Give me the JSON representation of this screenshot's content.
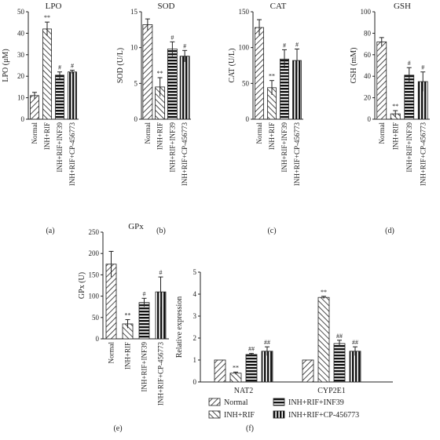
{
  "chart_data": [
    {
      "panel": "(a)",
      "type": "bar",
      "title": "LPO",
      "ylabel": "LPO (μM)",
      "ylim": [
        0,
        50
      ],
      "yticks": [
        0,
        10,
        20,
        30,
        40,
        50
      ],
      "categories": [
        "Normal",
        "INH+RIF",
        "INH+RIF+INF39",
        "INH+RIF+CP-456773"
      ],
      "values": [
        11,
        42,
        20.5,
        22
      ],
      "errors": [
        1.5,
        3.2,
        1.5,
        0.8
      ],
      "annotations": [
        "",
        "**",
        "#",
        "#"
      ]
    },
    {
      "panel": "(b)",
      "type": "bar",
      "title": "SOD",
      "ylabel": "SOD (U/L)",
      "ylim": [
        0,
        15
      ],
      "yticks": [
        0,
        5,
        10,
        15
      ],
      "categories": [
        "Normal",
        "INH+RIF",
        "INH+RIF+INF39",
        "INH+RIF+CP-456773"
      ],
      "values": [
        13.2,
        4.5,
        9.8,
        8.8
      ],
      "errors": [
        0.8,
        1.3,
        1.0,
        0.8
      ],
      "annotations": [
        "",
        "**",
        "#",
        "#"
      ]
    },
    {
      "panel": "(c)",
      "type": "bar",
      "title": "CAT",
      "ylabel": "CAT (U/L)",
      "ylim": [
        0,
        150
      ],
      "yticks": [
        0,
        50,
        100,
        150
      ],
      "categories": [
        "Normal",
        "INH+RIF",
        "INH+RIF+INF39",
        "INH+RIF+CP-456773"
      ],
      "values": [
        128,
        44,
        84,
        82
      ],
      "errors": [
        11,
        10,
        13,
        16
      ],
      "annotations": [
        "",
        "**",
        "#",
        "#"
      ]
    },
    {
      "panel": "(d)",
      "type": "bar",
      "title": "GSH",
      "ylabel": "GSH (mM)",
      "ylim": [
        0,
        100
      ],
      "yticks": [
        0,
        20,
        40,
        60,
        80,
        100
      ],
      "categories": [
        "Normal",
        "INH+RIF",
        "INH+RIF+INF39",
        "INH+RIF+CP-456773"
      ],
      "values": [
        72,
        5,
        41,
        35
      ],
      "errors": [
        4,
        3,
        7,
        9
      ],
      "annotations": [
        "",
        "**",
        "#",
        "#"
      ]
    },
    {
      "panel": "(e)",
      "type": "bar",
      "title": "GPx",
      "ylabel": "GPx (U)",
      "ylim": [
        0,
        250
      ],
      "yticks": [
        0,
        50,
        100,
        150,
        200,
        250
      ],
      "categories": [
        "Normal",
        "INH+RIF",
        "INH+RIF+INF39",
        "INH+RIF+CP-456773"
      ],
      "values": [
        175,
        35,
        85,
        110
      ],
      "errors": [
        30,
        10,
        10,
        35
      ],
      "annotations": [
        "",
        "**",
        "#",
        "#"
      ]
    },
    {
      "panel": "(f)",
      "type": "bar",
      "title": "",
      "ylabel": "Relative expression",
      "ylim": [
        0,
        5
      ],
      "yticks": [
        0,
        1,
        2,
        3,
        4,
        5
      ],
      "categories": [
        "NAT2",
        "CYP2E1"
      ],
      "series": [
        {
          "name": "Normal",
          "values": [
            1.0,
            1.0
          ],
          "errors": [
            0,
            0
          ],
          "annotations": [
            "",
            ""
          ]
        },
        {
          "name": "INH+RIF",
          "values": [
            0.4,
            3.85
          ],
          "errors": [
            0.05,
            0.05
          ],
          "annotations": [
            "**",
            "**"
          ]
        },
        {
          "name": "INH+RIF+INF39",
          "values": [
            1.25,
            1.75
          ],
          "errors": [
            0.05,
            0.15
          ],
          "annotations": [
            "##",
            "##"
          ]
        },
        {
          "name": "INH+RIF+CP-456773",
          "values": [
            1.4,
            1.4
          ],
          "errors": [
            0.2,
            0.2
          ],
          "annotations": [
            "##",
            "##"
          ]
        }
      ],
      "legend": "bottom"
    }
  ]
}
